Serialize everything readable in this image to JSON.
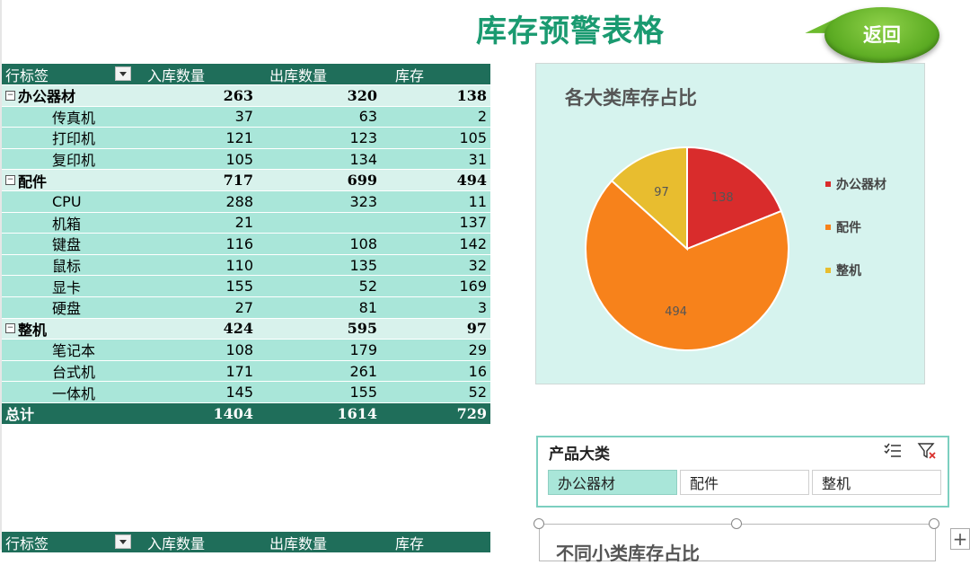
{
  "title": "库存预警表格",
  "back_label": "返回",
  "pivot": {
    "headers": [
      "行标签",
      "入库数量",
      "出库数量",
      "库存"
    ],
    "groups": [
      {
        "name": "办公器材",
        "in": "263",
        "out": "320",
        "stock": "138",
        "items": [
          {
            "name": "传真机",
            "in": "37",
            "out": "63",
            "stock": "2"
          },
          {
            "name": "打印机",
            "in": "121",
            "out": "123",
            "stock": "105"
          },
          {
            "name": "复印机",
            "in": "105",
            "out": "134",
            "stock": "31"
          }
        ]
      },
      {
        "name": "配件",
        "in": "717",
        "out": "699",
        "stock": "494",
        "items": [
          {
            "name": "CPU",
            "in": "288",
            "out": "323",
            "stock": "11"
          },
          {
            "name": "机箱",
            "in": "21",
            "out": "",
            "stock": "137"
          },
          {
            "name": "键盘",
            "in": "116",
            "out": "108",
            "stock": "142"
          },
          {
            "name": "鼠标",
            "in": "110",
            "out": "135",
            "stock": "32"
          },
          {
            "name": "显卡",
            "in": "155",
            "out": "52",
            "stock": "169"
          },
          {
            "name": "硬盘",
            "in": "27",
            "out": "81",
            "stock": "3"
          }
        ]
      },
      {
        "name": "整机",
        "in": "424",
        "out": "595",
        "stock": "97",
        "items": [
          {
            "name": "笔记本",
            "in": "108",
            "out": "179",
            "stock": "29"
          },
          {
            "name": "台式机",
            "in": "171",
            "out": "261",
            "stock": "16"
          },
          {
            "name": "一体机",
            "in": "145",
            "out": "155",
            "stock": "52"
          }
        ]
      }
    ],
    "total": {
      "name": "总计",
      "in": "1404",
      "out": "1614",
      "stock": "729"
    }
  },
  "chart_data": {
    "type": "pie",
    "title": "各大类库存占比",
    "categories": [
      "办公器材",
      "配件",
      "整机"
    ],
    "values": [
      138,
      494,
      97
    ],
    "data_labels": [
      "138",
      "494",
      "97"
    ],
    "colors": [
      "#d92c2c",
      "#f7821b",
      "#e8bd2f"
    ],
    "legend_position": "right"
  },
  "slicer": {
    "title": "产品大类",
    "buttons": [
      "办公器材",
      "配件",
      "整机"
    ],
    "selected": "办公器材",
    "icons": [
      "multi-select-icon",
      "clear-filter-icon"
    ]
  },
  "second_chart": {
    "partial_title": "不同小类库存占比"
  },
  "add_sheet_label": "+"
}
